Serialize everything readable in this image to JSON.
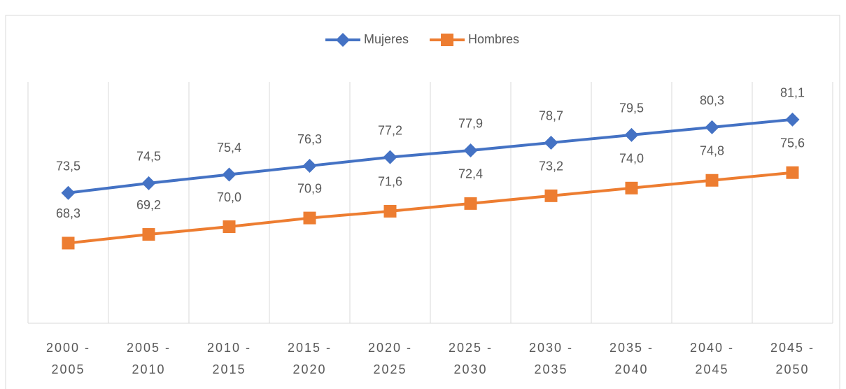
{
  "chart_data": {
    "type": "line",
    "categories": [
      "2000 - 2005",
      "2005 - 2010",
      "2010 - 2015",
      "2015 - 2020",
      "2020 - 2025",
      "2025 - 2030",
      "2030 - 2035",
      "2035 - 2040",
      "2040 - 2045",
      "2045 - 2050"
    ],
    "series": [
      {
        "name": "Mujeres",
        "color": "#4472c4",
        "marker": "diamond",
        "values": [
          73.5,
          74.5,
          75.4,
          76.3,
          77.2,
          77.9,
          78.7,
          79.5,
          80.3,
          81.1
        ],
        "value_labels": [
          "73,5",
          "74,5",
          "75,4",
          "76,3",
          "77,2",
          "77,9",
          "78,7",
          "79,5",
          "80,3",
          "81,1"
        ]
      },
      {
        "name": "Hombres",
        "color": "#ed7d31",
        "marker": "square",
        "values": [
          68.3,
          69.2,
          70.0,
          70.9,
          71.6,
          72.4,
          73.2,
          74.0,
          74.8,
          75.6
        ],
        "value_labels": [
          "68,3",
          "69,2",
          "70,0",
          "70,9",
          "71,6",
          "72,4",
          "73,2",
          "74,0",
          "74,8",
          "75,6"
        ]
      }
    ],
    "ylim": [
      60,
      85
    ],
    "grid": true,
    "legend": "top"
  }
}
